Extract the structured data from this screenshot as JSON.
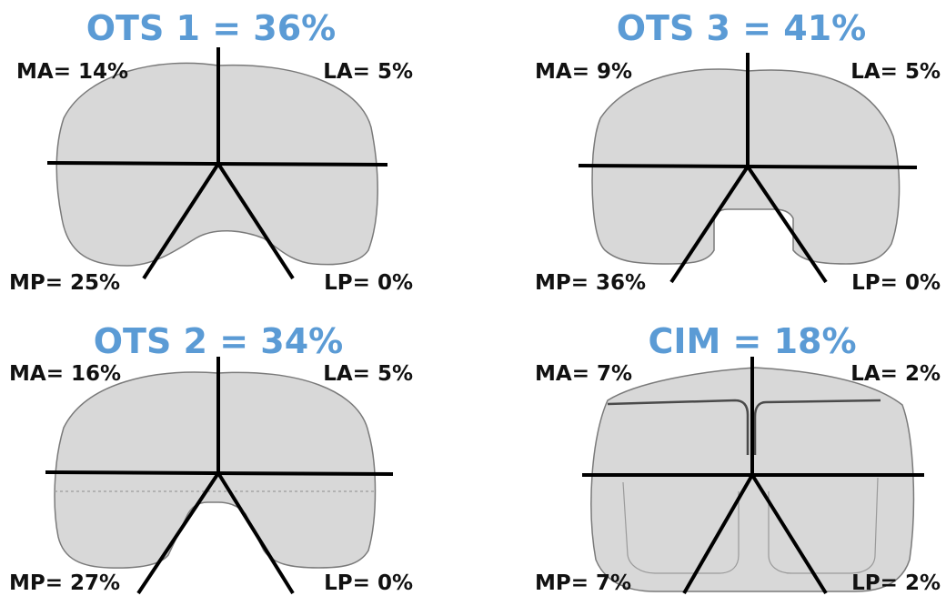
{
  "panels": [
    {
      "id": "ots1",
      "title": "OTS 1 = 36%",
      "labels": {
        "ma": "MA= 14%",
        "la": "LA= 5%",
        "mp": "MP= 25%",
        "lp": "LP= 0%"
      }
    },
    {
      "id": "ots3",
      "title": "OTS 3 = 41%",
      "labels": {
        "ma": "MA= 9%",
        "la": "LA= 5%",
        "mp": "MP= 36%",
        "lp": "LP= 0%"
      }
    },
    {
      "id": "ots2",
      "title": "OTS 2 = 34%",
      "labels": {
        "ma": "MA= 16%",
        "la": "LA= 5%",
        "mp": "MP= 27%",
        "lp": "LP= 0%"
      }
    },
    {
      "id": "cim",
      "title": "CIM = 18%",
      "labels": {
        "ma": "MA= 7%",
        "la": "LA= 2%",
        "mp": "MP= 7%",
        "lp": "LP= 2%"
      }
    }
  ],
  "colors": {
    "title": "#5b9bd5",
    "label": "#111111",
    "tray_fill": "#d8d8d8",
    "tray_outline": "#7a7a7a",
    "axis_lines": "#000000"
  }
}
